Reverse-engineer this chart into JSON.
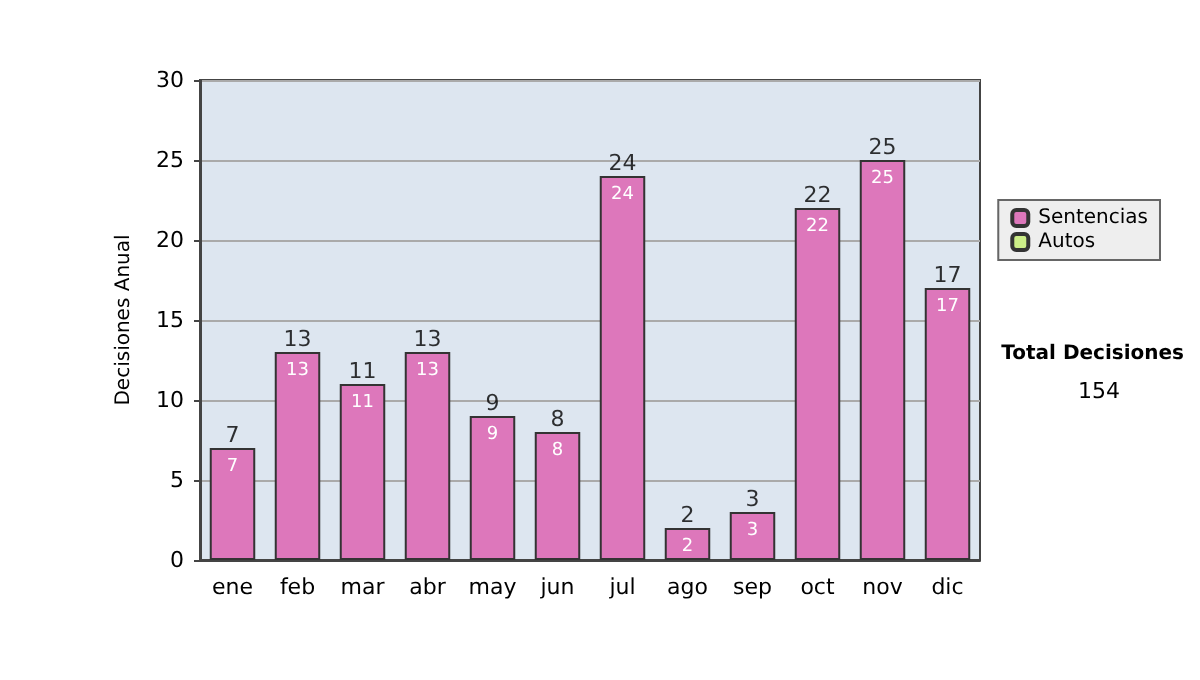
{
  "chart_data": {
    "type": "bar",
    "stacked": true,
    "ylabel": "Decisiones Anual",
    "categories": [
      "ene",
      "feb",
      "mar",
      "abr",
      "may",
      "jun",
      "jul",
      "ago",
      "sep",
      "oct",
      "nov",
      "dic"
    ],
    "series": [
      {
        "name": "Sentencias",
        "color": "#dd77bb",
        "values": [
          7,
          13,
          11,
          13,
          9,
          8,
          24,
          2,
          3,
          22,
          25,
          17
        ],
        "value_labels": [
          "7",
          "13",
          "11",
          "13",
          "9",
          "8",
          "24",
          "2",
          "3",
          "22",
          "25",
          "17"
        ]
      },
      {
        "name": "Autos",
        "color": "#ccee88",
        "values": [
          0,
          0,
          0,
          0,
          0,
          0,
          0,
          0,
          0,
          0,
          0,
          0
        ]
      }
    ],
    "totals": [
      "7",
      "13",
      "11",
      "13",
      "9",
      "8",
      "24",
      "2",
      "3",
      "22",
      "25",
      "17"
    ],
    "ylim": [
      0,
      30
    ],
    "yticks": [
      0,
      5,
      10,
      15,
      20,
      25,
      30
    ],
    "grid": "y",
    "legend": "right",
    "annotations": [
      "Total Decisiones",
      "154"
    ]
  }
}
